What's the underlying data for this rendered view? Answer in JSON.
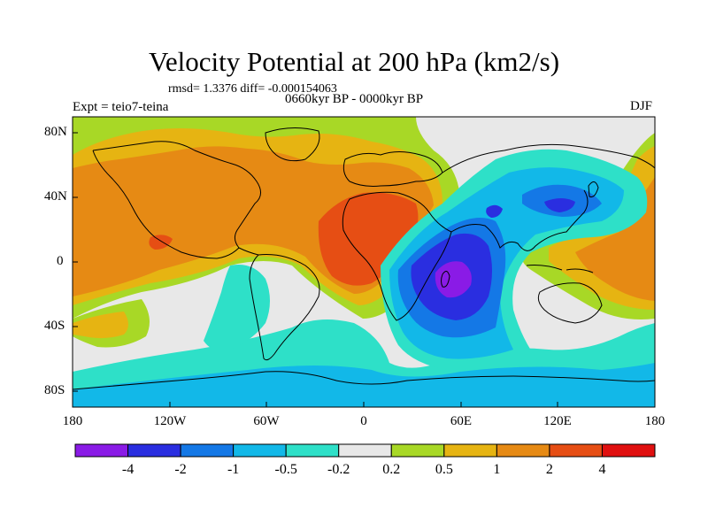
{
  "title": "Velocity Potential at 200 hPa (km2/s)",
  "stats_line": "rmsd= 1.3376 diff= -0.000154063",
  "period": "0660kyr BP - 0000kyr BP",
  "experiment": "Expt = teio7-teina",
  "season": "DJF",
  "map": {
    "projection": "cylindrical equidistant",
    "lon_range": [
      -180,
      180
    ],
    "lat_range": [
      -90,
      90
    ],
    "x_tick_labels": [
      "180",
      "120W",
      "60W",
      "0",
      "60E",
      "120E",
      "180"
    ],
    "y_tick_labels": [
      "80N",
      "40N",
      "0",
      "40S",
      "80S"
    ],
    "features": [
      {
        "region": "Indian Ocean / East Africa",
        "value_band": "-4 to -2",
        "note": "strongest negative center"
      },
      {
        "region": "Western Pacific / Japan",
        "value_band": "-2 to -1"
      },
      {
        "region": "Tropical Atlantic / West Africa",
        "value_band": "2 to 4",
        "note": "strongest positive center"
      },
      {
        "region": "Central & North Pacific",
        "value_band": "1 to 2"
      },
      {
        "region": "Maritime Continent east",
        "value_band": "1 to 2"
      },
      {
        "region": "Southern Ocean",
        "value_band": "-1 to -0.5"
      }
    ]
  },
  "colorbar": {
    "colors": [
      "#8a1be6",
      "#2a2ee0",
      "#1478e6",
      "#12b8e8",
      "#2ee0c8",
      "#e8e8e8",
      "#a8d826",
      "#e6b412",
      "#e68a14",
      "#e64e14",
      "#e01010"
    ],
    "labels": [
      "-4",
      "-2",
      "-1",
      "-0.5",
      "-0.2",
      "0.2",
      "0.5",
      "1",
      "2",
      "4"
    ]
  }
}
